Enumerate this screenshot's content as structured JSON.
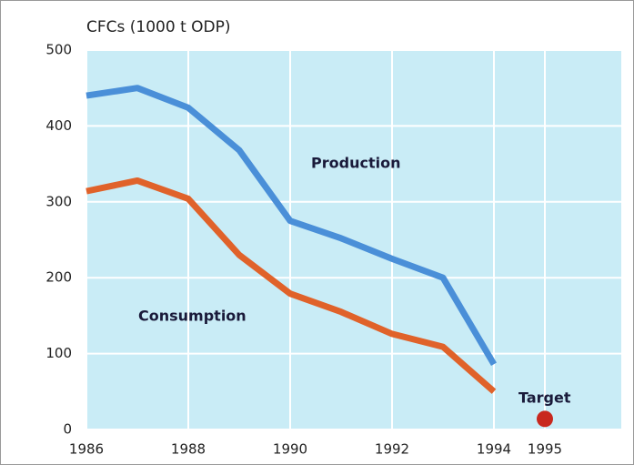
{
  "chart_data": {
    "type": "line",
    "y_label": "CFCs (1000 t ODP)",
    "x": [
      1986,
      1987,
      1988,
      1989,
      1990,
      1991,
      1992,
      1993,
      1994
    ],
    "series": [
      {
        "name": "Production",
        "color": "#4a8fd8",
        "values": [
          440,
          450,
          424,
          368,
          275,
          252,
          225,
          200,
          86
        ]
      },
      {
        "name": "Consumption",
        "color": "#e0622a",
        "values": [
          314,
          328,
          304,
          230,
          179,
          155,
          126,
          109,
          50
        ]
      }
    ],
    "target": {
      "label": "Target",
      "x": 1995,
      "value": 14,
      "color": "#c8281e"
    },
    "xlim": [
      1986,
      1996.5
    ],
    "xticks": [
      1986,
      1988,
      1990,
      1992,
      1994,
      1995
    ],
    "ylim": [
      0,
      500
    ],
    "yticks": [
      0,
      100,
      200,
      300,
      400,
      500
    ],
    "grid": true,
    "background": "#c9ecf6"
  }
}
